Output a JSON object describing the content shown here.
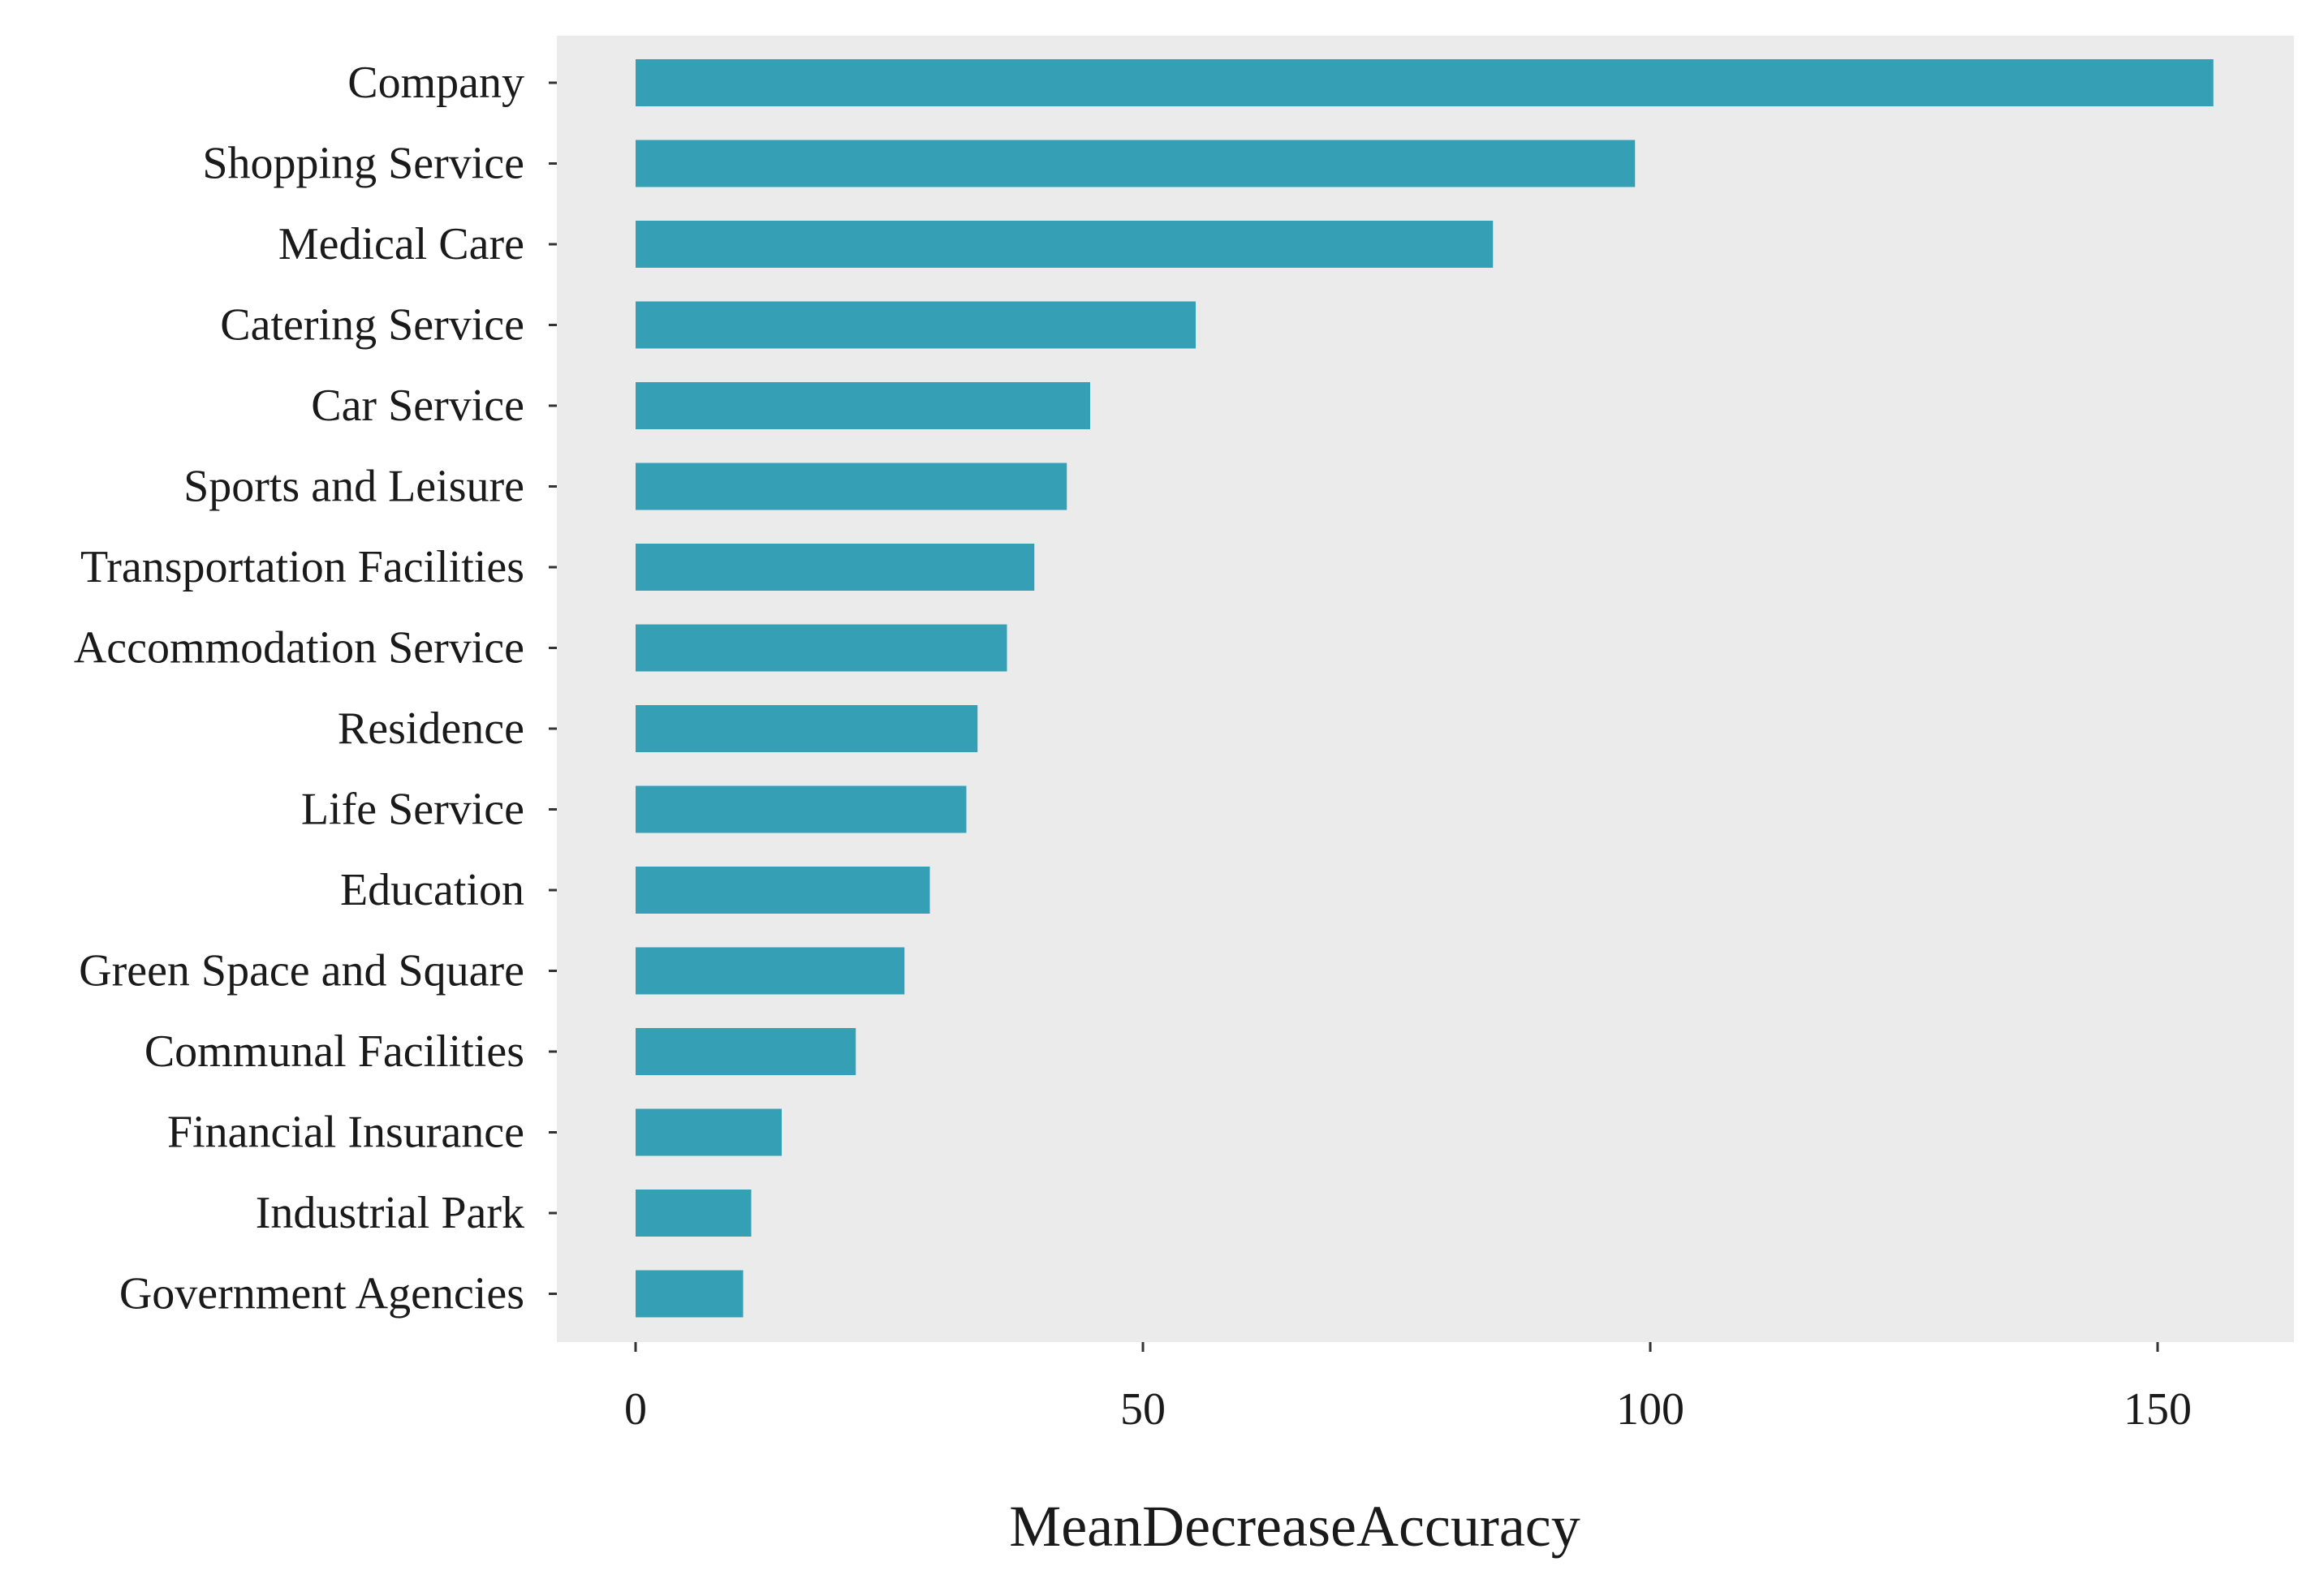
{
  "chart_data": {
    "type": "bar",
    "orientation": "horizontal",
    "title": "",
    "xlabel": "MeanDecreaseAccuracy",
    "ylabel": "",
    "xlim": [
      -7.5,
      163
    ],
    "xticks": [
      0,
      50,
      100,
      150
    ],
    "xtick_labels": [
      "0",
      "50",
      "100",
      "150"
    ],
    "grid": false,
    "colors": {
      "bar": "#35a0b5",
      "panel": "#ebebeb",
      "text": "#1a1a1a",
      "tick": "#333333"
    },
    "categories": [
      "Company",
      "Shopping Service",
      "Medical Care",
      "Catering Service",
      "Car Service",
      "Sports and Leisure",
      "Transportation Facilities",
      "Accommodation Service",
      "Residence",
      "Life Service",
      "Education",
      "Green Space and Square",
      "Communal Facilities",
      "Financial Insurance",
      "Industrial Park",
      "Government Agencies"
    ],
    "values": [
      155.5,
      98.5,
      84.5,
      55.2,
      44.8,
      42.5,
      39.3,
      36.6,
      33.7,
      32.6,
      29.0,
      26.5,
      21.7,
      14.4,
      11.4,
      10.6
    ]
  }
}
